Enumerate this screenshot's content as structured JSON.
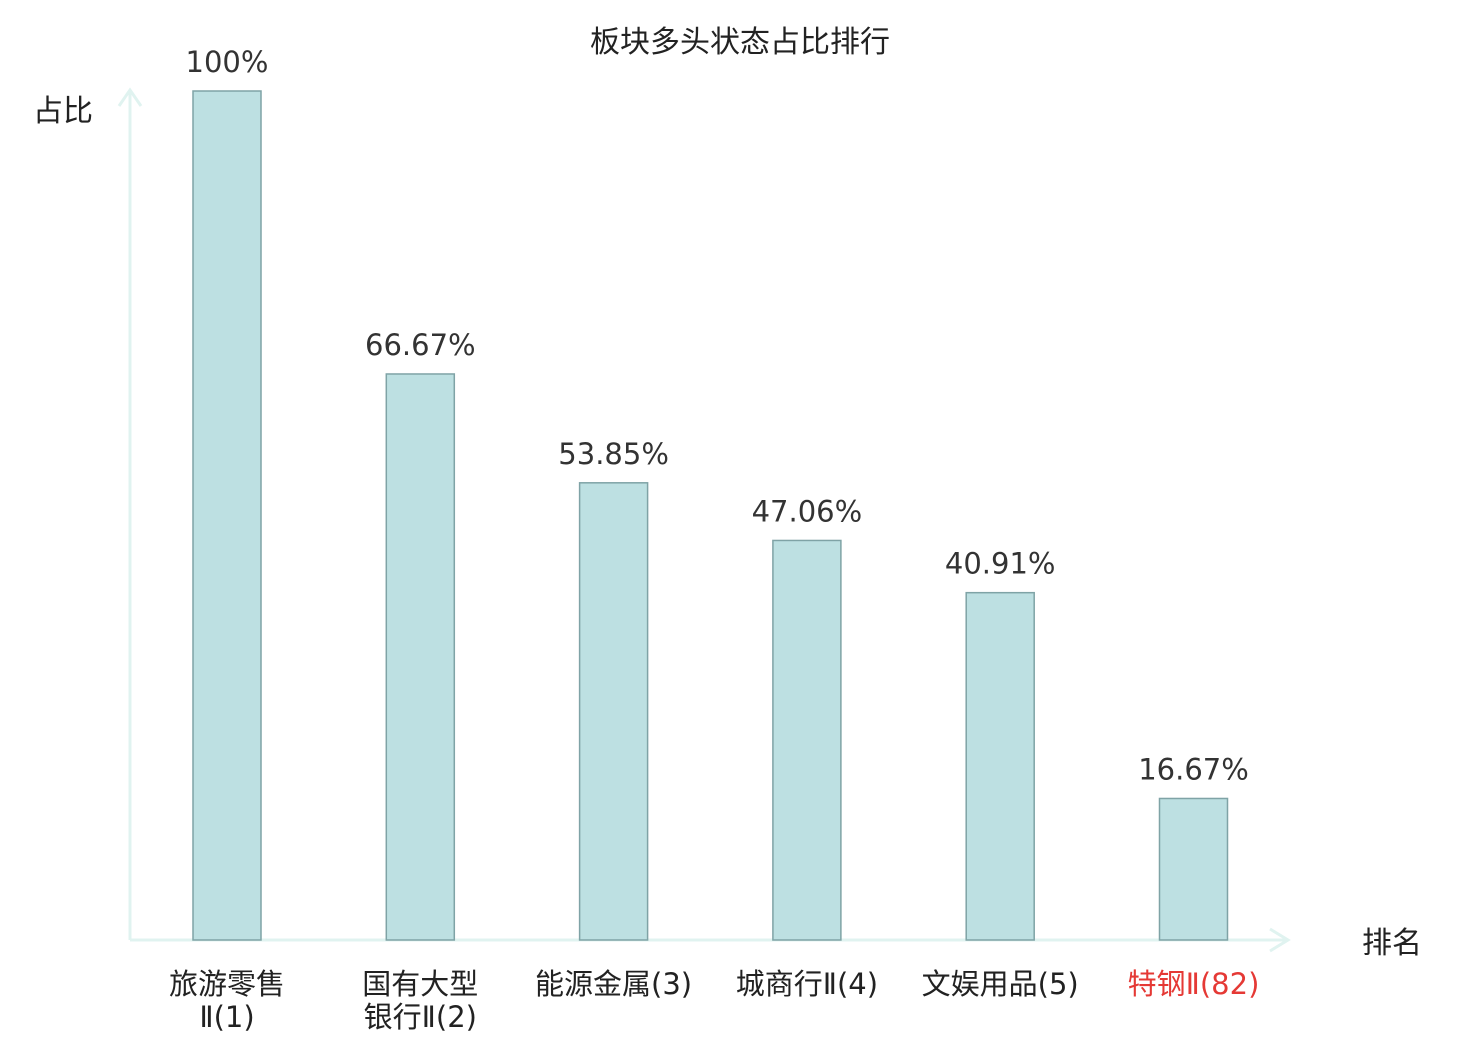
{
  "chart_data": {
    "type": "bar",
    "title": "板块多头状态占比排行",
    "ylabel": "占比",
    "xlabel": "排名",
    "ylim": [
      0,
      100
    ],
    "categories": [
      {
        "name": "旅游零售",
        "rank": "Ⅱ(1)",
        "lines": [
          "旅游零售",
          "Ⅱ(1)"
        ]
      },
      {
        "name": "国有大型银行",
        "rank": "Ⅱ(2)",
        "lines": [
          "国有大型",
          "银行Ⅱ(2)"
        ]
      },
      {
        "name": "能源金属",
        "rank": "(3)",
        "lines": [
          "能源金属(3)"
        ]
      },
      {
        "name": "城商行",
        "rank": "Ⅱ(4)",
        "lines": [
          "城商行Ⅱ(4)"
        ]
      },
      {
        "name": "文娱用品",
        "rank": "(5)",
        "lines": [
          "文娱用品(5)"
        ]
      },
      {
        "name": "特钢",
        "rank": "Ⅱ(82)",
        "lines": [
          "特钢Ⅱ(82)"
        ],
        "highlight": true
      }
    ],
    "values": [
      100,
      66.67,
      53.85,
      47.06,
      40.91,
      16.67
    ],
    "value_labels": [
      "100%",
      "66.67%",
      "53.85%",
      "47.06%",
      "40.91%",
      "16.67%"
    ],
    "grid": false,
    "legend": "none",
    "colors": {
      "bar_fill": "#bde0e2",
      "bar_stroke": "#7fa3a6",
      "axis": "#e0f3f0",
      "text": "#222222",
      "highlight_text": "#e53935"
    }
  }
}
